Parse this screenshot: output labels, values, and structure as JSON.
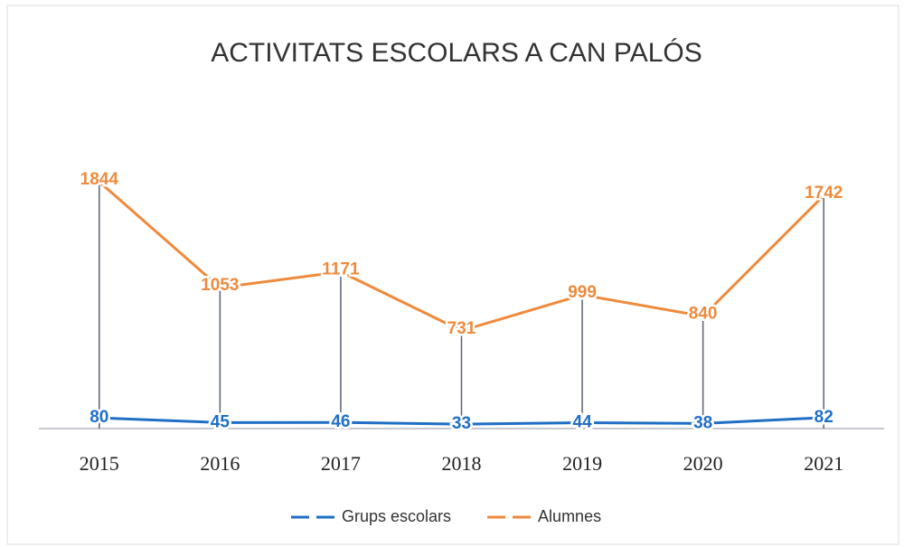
{
  "chart_data": {
    "type": "line",
    "title": "ACTIVITATS ESCOLARS A CAN PALÓS",
    "categories": [
      "2015",
      "2016",
      "2017",
      "2018",
      "2019",
      "2020",
      "2021"
    ],
    "series": [
      {
        "name": "Grups escolars",
        "color": "#1f6fc5",
        "values": [
          80,
          45,
          46,
          33,
          44,
          38,
          82
        ]
      },
      {
        "name": "Alumnes",
        "color": "#ef8a3c",
        "values": [
          1844,
          1053,
          1171,
          731,
          999,
          840,
          1742
        ]
      }
    ],
    "ylim": [
      0,
      2000
    ],
    "drop_lines": true,
    "legend": "bottom"
  }
}
